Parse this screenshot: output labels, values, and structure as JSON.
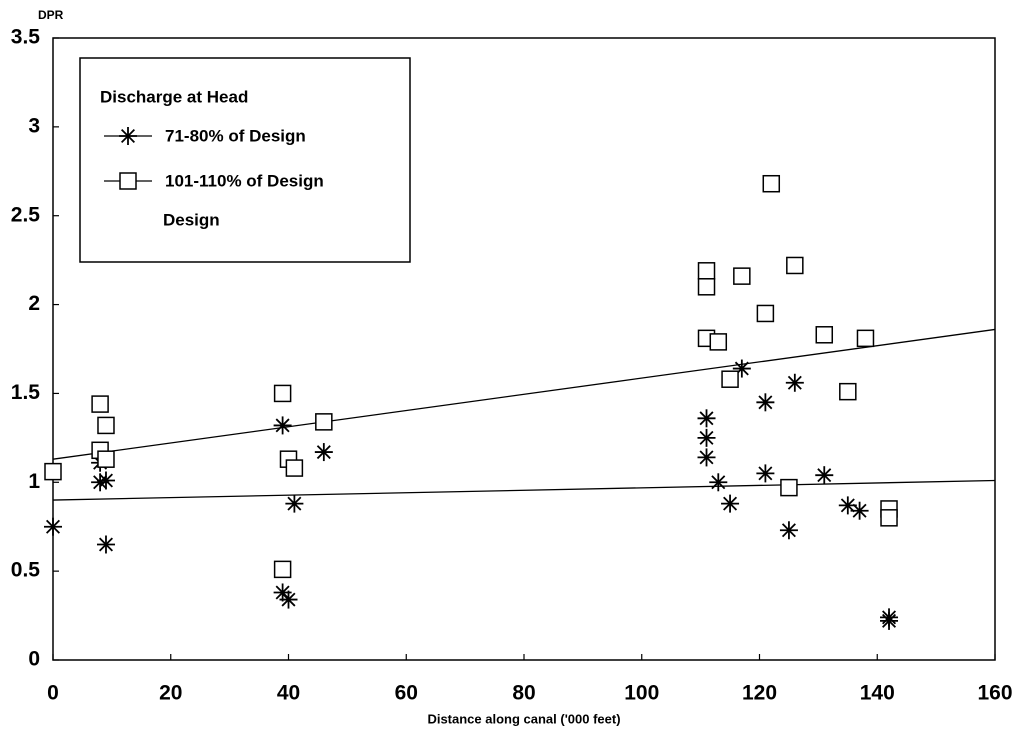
{
  "chart_data": {
    "type": "scatter",
    "y_label": "DPR",
    "x_label": "Distance along canal ('000 feet)",
    "xlim": [
      0,
      160
    ],
    "xticks": [
      0,
      20,
      40,
      60,
      80,
      100,
      120,
      140,
      160
    ],
    "ylim": [
      0,
      3.5
    ],
    "yticks": [
      0,
      0.5,
      1,
      1.5,
      2,
      2.5,
      3,
      3.5
    ],
    "grid": false,
    "legend_title": "Discharge at Head",
    "series": [
      {
        "name": "71-80% of Design",
        "marker": "star",
        "color": "#000000",
        "x": [
          0,
          8,
          9,
          8,
          9,
          39,
          39,
          40,
          41,
          46,
          111,
          111,
          111,
          113,
          115,
          117,
          121,
          121,
          126,
          125,
          131,
          135,
          137,
          142,
          142
        ],
        "values": [
          0.75,
          1.11,
          1.01,
          1.0,
          0.65,
          1.32,
          0.38,
          0.34,
          0.88,
          1.17,
          1.36,
          1.25,
          1.14,
          1.0,
          0.88,
          1.64,
          1.45,
          1.05,
          1.56,
          0.73,
          1.04,
          0.87,
          0.84,
          0.24,
          0.22
        ]
      },
      {
        "name": "101-110% of Design",
        "marker": "square",
        "color": "#000000",
        "x": [
          0,
          8,
          8,
          9,
          9,
          39,
          39,
          40,
          41,
          46,
          111,
          111,
          111,
          113,
          115,
          117,
          122,
          121,
          126,
          125,
          131,
          135,
          138,
          142,
          142
        ],
        "values": [
          1.06,
          1.44,
          1.18,
          1.32,
          1.13,
          1.5,
          0.51,
          1.13,
          1.08,
          1.34,
          2.19,
          2.1,
          1.81,
          1.79,
          1.58,
          2.16,
          2.68,
          1.95,
          2.22,
          0.97,
          1.83,
          1.51,
          1.81,
          0.85,
          0.8
        ]
      }
    ],
    "design": {
      "name": "Design",
      "lines": [
        {
          "x": [
            0,
            160
          ],
          "values": [
            1.13,
            1.86
          ]
        },
        {
          "x": [
            0,
            160
          ],
          "values": [
            0.9,
            1.01
          ]
        }
      ]
    }
  }
}
